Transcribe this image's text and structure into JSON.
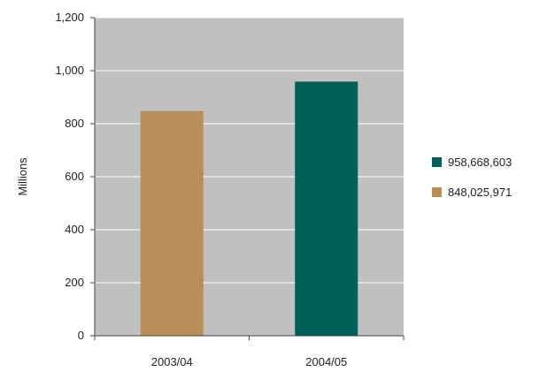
{
  "chart_data": {
    "type": "bar",
    "title": "",
    "xlabel": "",
    "ylabel": "Millions",
    "categories": [
      "2003/04",
      "2004/05"
    ],
    "values": [
      848.03,
      958.67
    ],
    "ylim": [
      0,
      1200
    ],
    "yticks": [
      0,
      200,
      400,
      600,
      800,
      1000,
      1200
    ],
    "ytick_labels": [
      "0",
      "200",
      "400",
      "600",
      "800",
      "1,000",
      "1,200"
    ],
    "bar_colors": [
      "#b98f58",
      "#005f58"
    ],
    "plot_background": "#c0c0c0",
    "gridlines": true,
    "gridline_color": "#ffffff",
    "legend": {
      "placement": "right",
      "entries": [
        {
          "label": "958,668,603",
          "color": "#005f58"
        },
        {
          "label": "848,025,971",
          "color": "#b98f58"
        }
      ]
    }
  }
}
